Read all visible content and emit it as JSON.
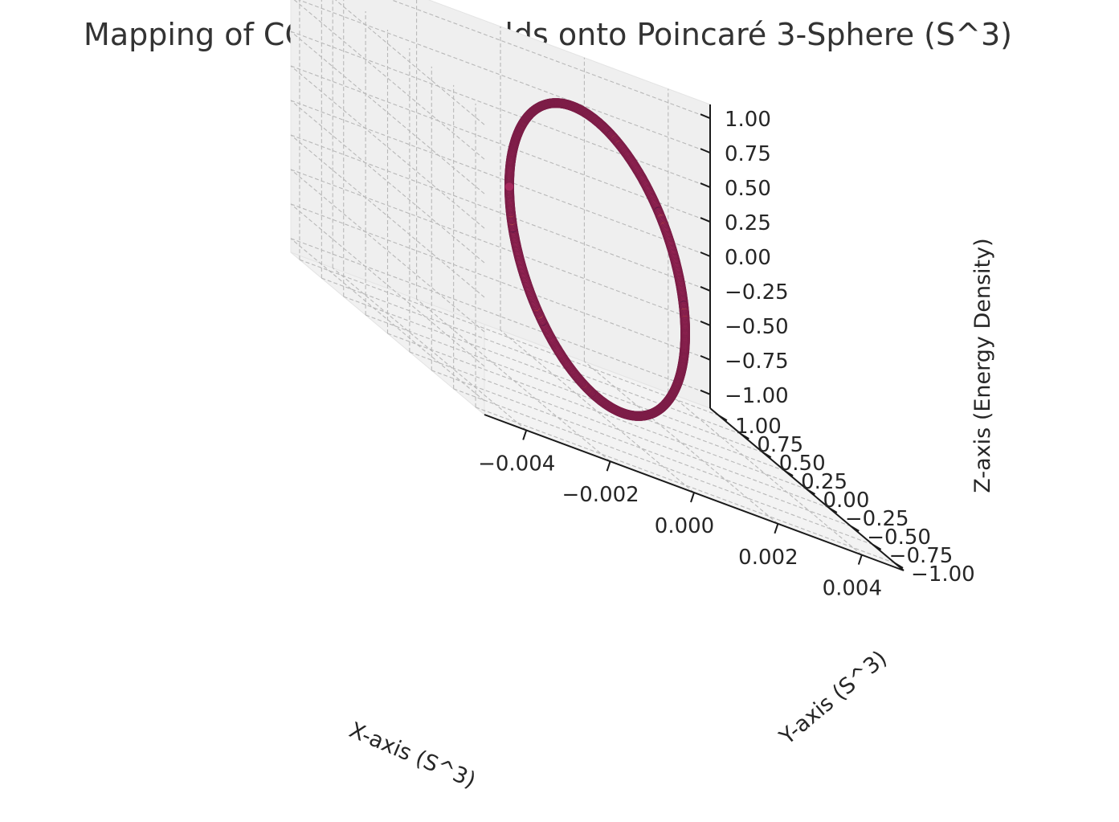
{
  "chart_data": {
    "type": "scatter",
    "projection": "3d",
    "title": "Mapping of COM Nested Fields onto Poincaré 3-Sphere (S^3)",
    "xlabel": "X-axis (S^3)",
    "ylabel": "Y-axis (S^3)",
    "zlabel": "Z-axis (Energy Density)",
    "xlim": [
      -0.005,
      0.005
    ],
    "ylim": [
      -1.1,
      1.1
    ],
    "zlim": [
      -1.1,
      1.1
    ],
    "xticks": [
      "−0.004",
      "−0.002",
      "0.000",
      "0.002",
      "0.004"
    ],
    "yticks": [
      "−1.00",
      "−0.75",
      "−0.50",
      "−0.25",
      "0.00",
      "0.25",
      "0.50",
      "0.75",
      "1.00"
    ],
    "zticks": [
      "−1.00",
      "−0.75",
      "−0.50",
      "−0.25",
      "0.00",
      "0.25",
      "0.50",
      "0.75",
      "1.00"
    ],
    "grid": true,
    "series": [
      {
        "x": 0,
        "y_equals": "cos(t)",
        "z_equals": "sin(t)",
        "t_range": [
          0,
          6.2832
        ],
        "point_count": 1000,
        "color": "#a72a5e",
        "highlight_colors": [
          "#e0513f",
          "#f07a4a",
          "#3b1048",
          "#2a0b36"
        ]
      }
    ]
  }
}
